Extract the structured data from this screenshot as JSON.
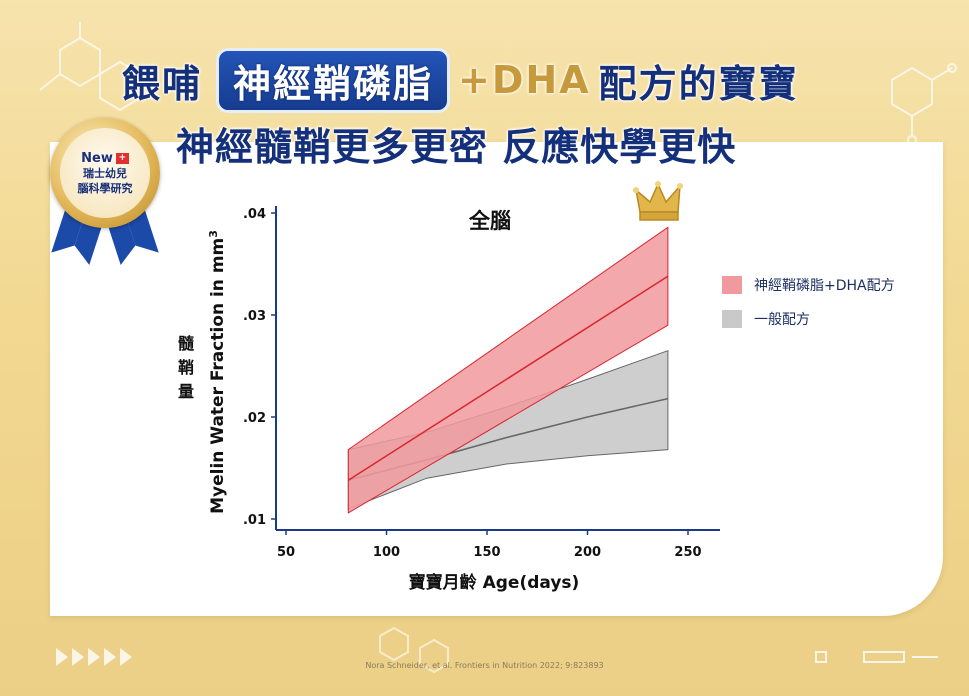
{
  "header": {
    "line1_prefix": "餵哺",
    "line1_highlight": "神經鞘磷脂",
    "line1_plus": "+DHA",
    "line1_suffix": "配方的寶寶",
    "line2": "神經髓鞘更多更密 反應快學更快"
  },
  "badge": {
    "new_label": "New",
    "flag_glyph": "+",
    "line1": "瑞士幼兒",
    "line2": "腦科學研究"
  },
  "side_label": "髓鞘量",
  "footnote": "Nora Schneider, et al. Frontiers in Nutrition 2022; 9:823893",
  "colors": {
    "treatment_fill": "#f19a9d",
    "treatment_line": "#d8262e",
    "control_fill": "#c9c9c9",
    "control_line": "#666666",
    "axis": "#1c3a8c",
    "title_blue": "#15307a"
  },
  "chart_data": {
    "type": "line",
    "title": "全腦",
    "xlabel": "寶寶月齡 Age(days)",
    "ylabel_main": "Myelin Water Fraction in mm",
    "ylabel_sup": "3",
    "xlim": [
      50,
      250
    ],
    "ylim": [
      0.01,
      0.04
    ],
    "x_ticks": [
      50,
      100,
      150,
      200,
      250
    ],
    "x_tick_labels": [
      "50",
      "100",
      "150",
      "200",
      "250"
    ],
    "y_ticks": [
      0.01,
      0.02,
      0.03,
      0.04
    ],
    "y_tick_labels": [
      ".01",
      ".02",
      ".03",
      ".04"
    ],
    "legend_position": "right",
    "grid": false,
    "series": [
      {
        "name": "神經鞘磷脂+DHA配方",
        "x": [
          81,
          240
        ],
        "mean": [
          0.0138,
          0.0338
        ],
        "lower": [
          0.0106,
          0.029
        ],
        "upper": [
          0.0168,
          0.0386
        ],
        "color_key": "treatment"
      },
      {
        "name": "一般配方",
        "x": [
          81,
          120,
          160,
          200,
          240
        ],
        "mean": [
          0.0138,
          0.0158,
          0.018,
          0.02,
          0.0218
        ],
        "lower": [
          0.011,
          0.014,
          0.0154,
          0.0162,
          0.0168
        ],
        "upper": [
          0.0168,
          0.0185,
          0.021,
          0.0237,
          0.0265
        ],
        "color_key": "control"
      }
    ]
  }
}
